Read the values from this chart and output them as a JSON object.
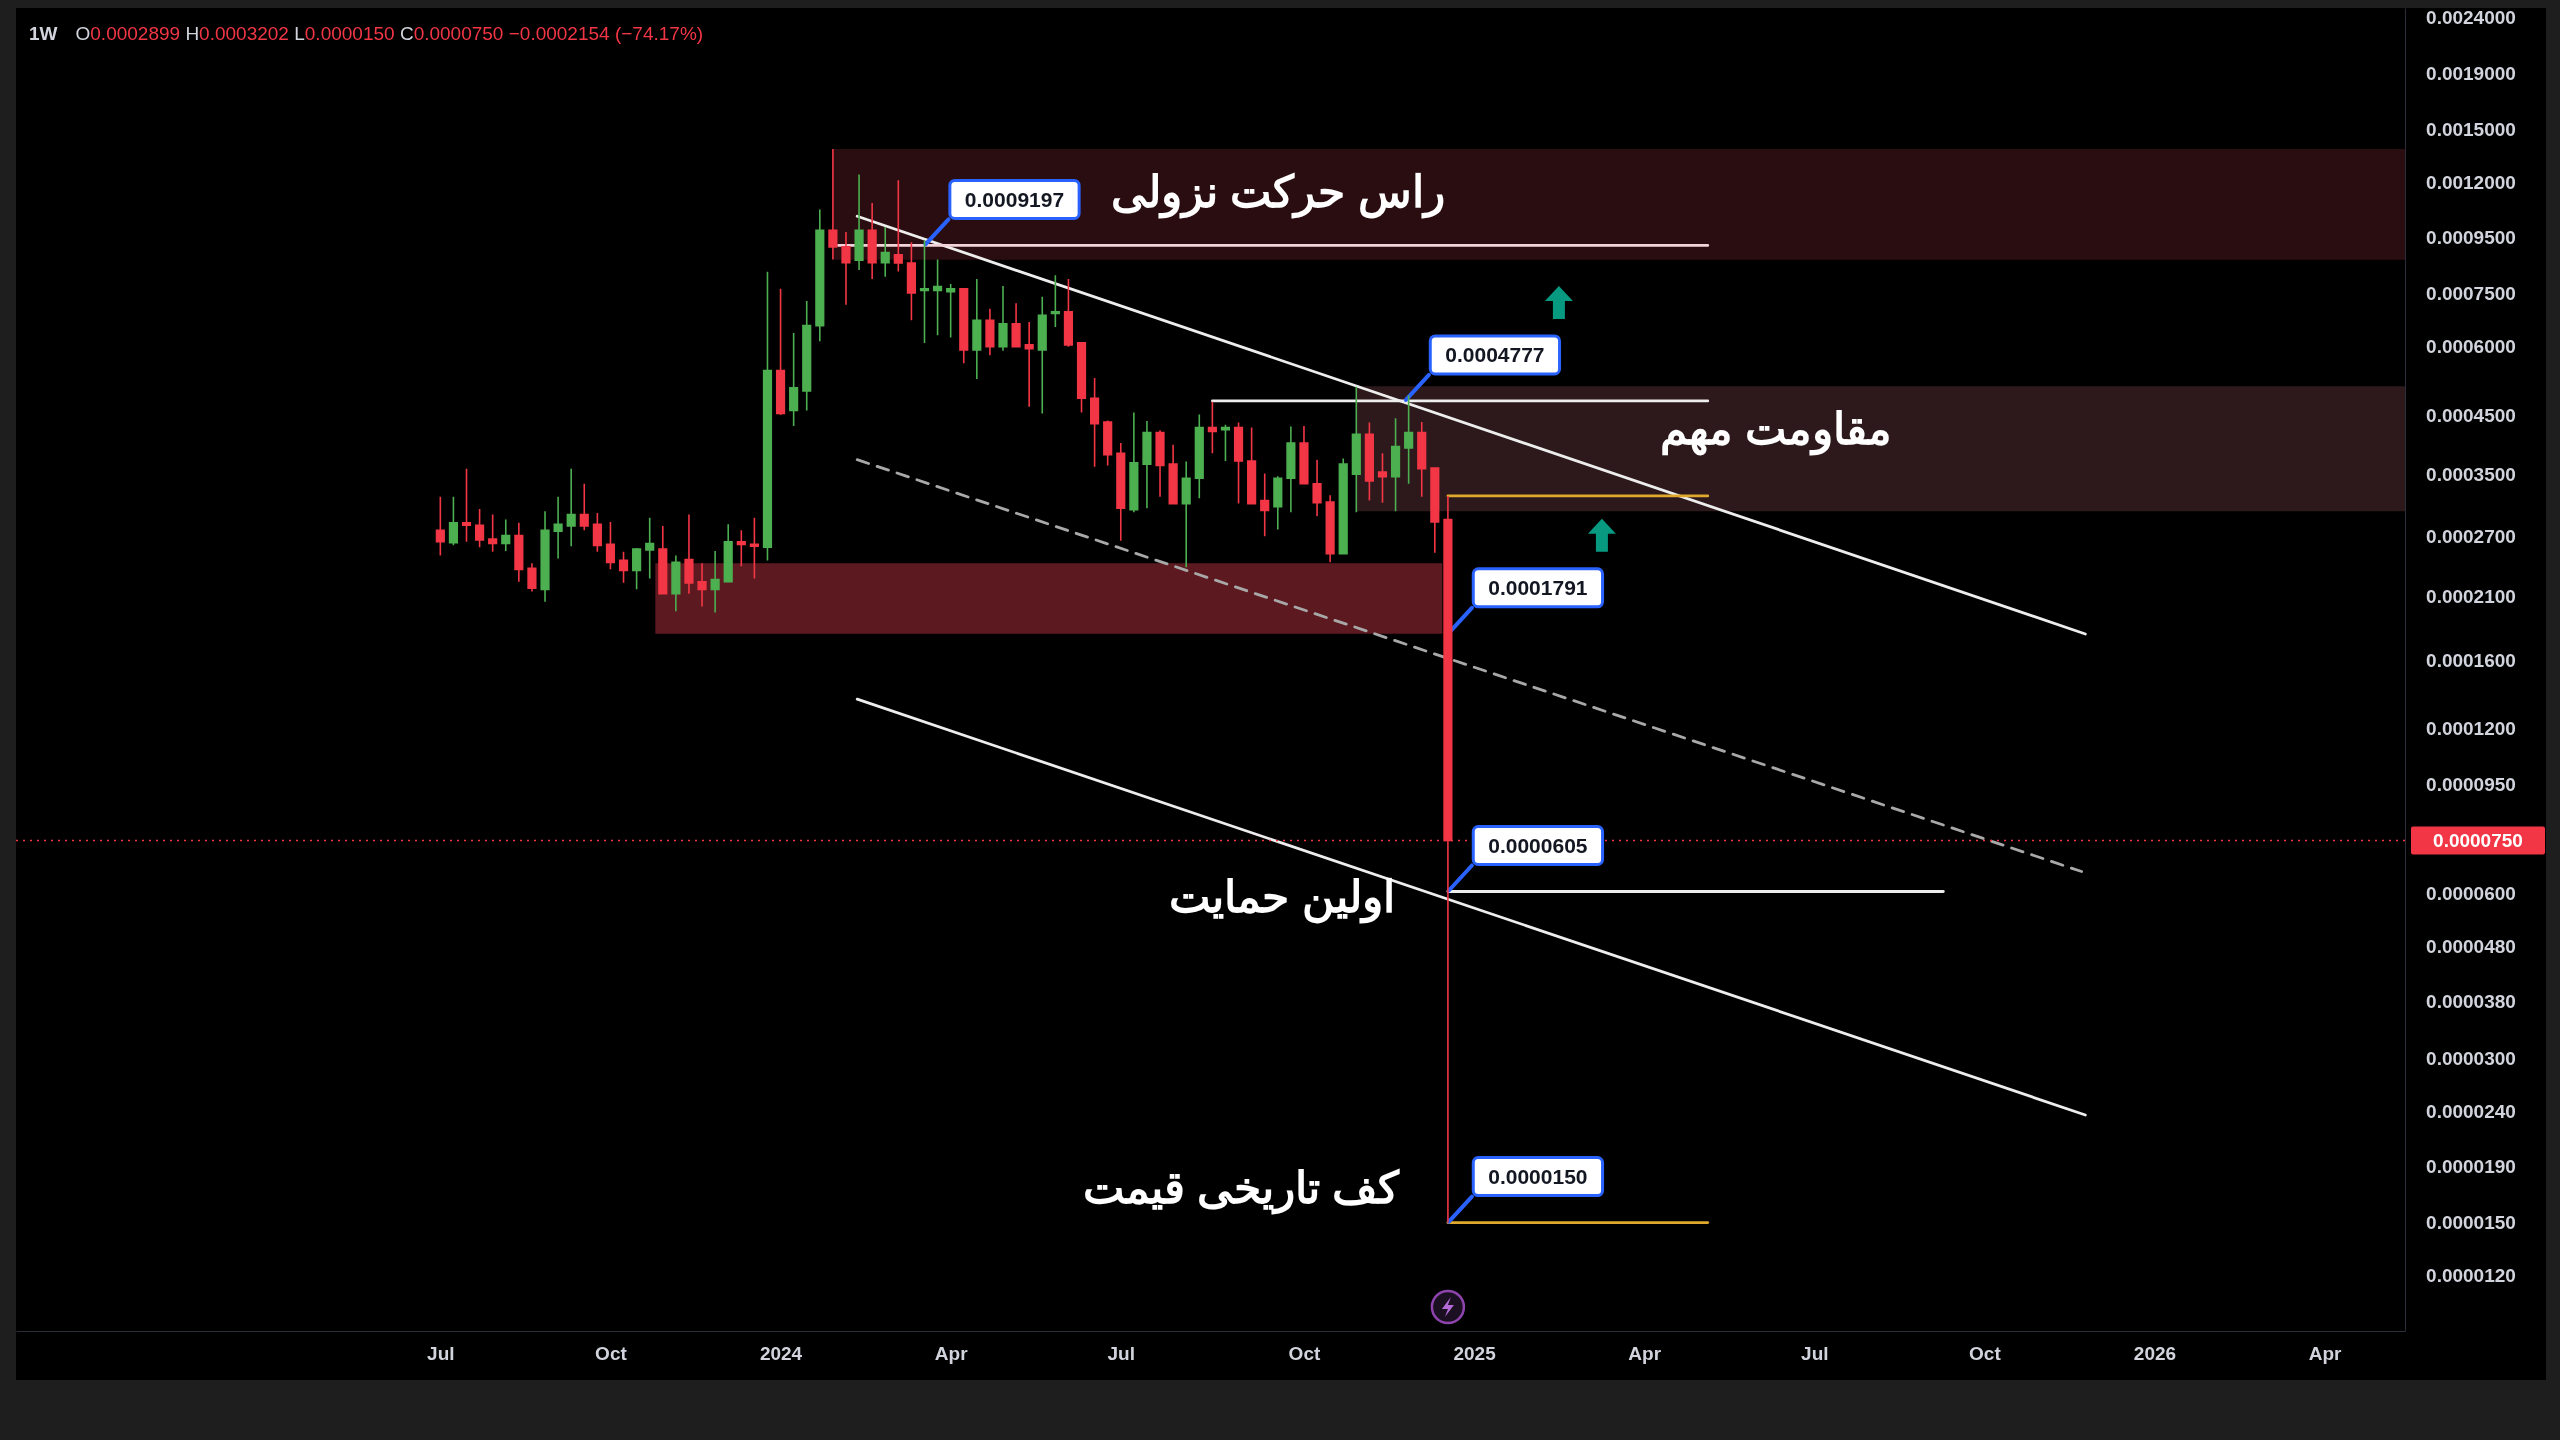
{
  "chart_data": {
    "type": "candlestick",
    "title": "1W",
    "subtitle": "O0.0002899 H0.0003202 L0.0000150 C0.0000750 −0.0002154 (−74.17%)",
    "log": "y",
    "x": [
      "2023-07-03",
      "2023-07-10",
      "2023-07-17",
      "2023-07-24",
      "2023-07-31",
      "2023-08-07",
      "2023-08-14",
      "2023-08-21",
      "2023-08-28",
      "2023-09-04",
      "2023-09-11",
      "2023-09-18",
      "2023-09-25",
      "2023-10-02",
      "2023-10-09",
      "2023-10-16",
      "2023-10-23",
      "2023-10-30",
      "2023-11-06",
      "2023-11-13",
      "2023-11-20",
      "2023-11-27",
      "2023-12-04",
      "2023-12-11",
      "2023-12-18",
      "2023-12-25",
      "2024-01-01",
      "2024-01-08",
      "2024-01-15",
      "2024-01-22",
      "2024-01-29",
      "2024-02-05",
      "2024-02-12",
      "2024-02-19",
      "2024-02-26",
      "2024-03-04",
      "2024-03-11",
      "2024-03-18",
      "2024-03-25",
      "2024-04-01",
      "2024-04-08",
      "2024-04-15",
      "2024-04-22",
      "2024-04-29",
      "2024-05-06",
      "2024-05-13",
      "2024-05-20",
      "2024-05-27",
      "2024-06-03",
      "2024-06-10",
      "2024-06-17",
      "2024-06-24",
      "2024-07-01",
      "2024-07-08",
      "2024-07-15",
      "2024-07-22",
      "2024-07-29",
      "2024-08-05",
      "2024-08-12",
      "2024-08-19",
      "2024-08-26",
      "2024-09-02",
      "2024-09-09",
      "2024-09-16",
      "2024-09-23",
      "2024-09-30",
      "2024-10-07",
      "2024-10-14",
      "2024-10-21",
      "2024-10-28",
      "2024-11-04",
      "2024-11-11",
      "2024-11-18",
      "2024-11-25",
      "2024-12-02",
      "2024-12-09",
      "2024-12-16",
      "2024-12-23"
    ],
    "ohlc": [
      [
        0.000277,
        0.000319,
        0.000249,
        0.000264
      ],
      [
        0.000263,
        0.000319,
        0.00026,
        0.000286
      ],
      [
        0.000286,
        0.000359,
        0.000264,
        0.000283
      ],
      [
        0.000283,
        0.000303,
        0.000258,
        0.000266
      ],
      [
        0.000267,
        0.000296,
        0.000253,
        0.000262
      ],
      [
        0.000262,
        0.00029,
        0.000254,
        0.000271
      ],
      [
        0.000271,
        0.000286,
        0.000223,
        0.000235
      ],
      [
        0.000236,
        0.000241,
        0.000214,
        0.000217
      ],
      [
        0.000216,
        0.0003,
        0.000205,
        0.000277
      ],
      [
        0.000276,
        0.000319,
        0.000246,
        0.000284
      ],
      [
        0.000282,
        0.000359,
        0.000259,
        0.000296
      ],
      [
        0.000296,
        0.000337,
        0.000277,
        0.000282
      ],
      [
        0.000284,
        0.000298,
        0.000253,
        0.00026
      ],
      [
        0.000261,
        0.000287,
        0.000235,
        0.000242
      ],
      [
        0.000244,
        0.000253,
        0.000222,
        0.000234
      ],
      [
        0.000234,
        0.000257,
        0.000216,
        0.000256
      ],
      [
        0.000255,
        0.000292,
        0.000226,
        0.000262
      ],
      [
        0.000256,
        0.000282,
        0.000212,
        0.000212
      ],
      [
        0.000212,
        0.000249,
        0.000197,
        0.000242
      ],
      [
        0.000245,
        0.000296,
        0.000212,
        0.000222
      ],
      [
        0.000223,
        0.000241,
        0.000201,
        0.000216
      ],
      [
        0.000216,
        0.000254,
        0.000196,
        0.000225
      ],
      [
        0.000223,
        0.000284,
        0.000223,
        0.000264
      ],
      [
        0.000264,
        0.000277,
        0.000238,
        0.000261
      ],
      [
        0.000261,
        0.000292,
        0.000226,
        0.000259
      ],
      [
        0.000258,
        0.000823,
        0.000244,
        0.000543
      ],
      [
        0.000543,
        0.000766,
        0.00045,
        0.000453
      ],
      [
        0.000459,
        0.000636,
        0.00043,
        0.000505
      ],
      [
        0.000498,
        0.000728,
        0.000459,
        0.000656
      ],
      [
        0.000656,
        0.00107,
        0.000614,
        0.00098
      ],
      [
        0.00098,
        0.00138,
        0.000867,
        0.000914
      ],
      [
        0.000914,
        0.000973,
        0.000716,
        0.000855
      ],
      [
        0.000864,
        0.00124,
        0.000829,
        0.00098
      ],
      [
        0.00098,
        0.0011,
        0.000798,
        0.000855
      ],
      [
        0.000855,
        0.000994,
        0.000806,
        0.000892
      ],
      [
        0.000884,
        0.00121,
        0.000824,
        0.000854
      ],
      [
        0.000854,
        0.000932,
        0.000671,
        0.000753
      ],
      [
        0.000761,
        0.00094,
        0.00061,
        0.000766
      ],
      [
        0.000761,
        0.000867,
        0.00063,
        0.000773
      ],
      [
        0.000757,
        0.000782,
        0.000624,
        0.000766
      ],
      [
        0.000766,
        0.000766,
        0.00056,
        0.000592
      ],
      [
        0.000592,
        0.000798,
        0.000524,
        0.000671
      ],
      [
        0.000671,
        0.000704,
        0.000579,
        0.0006
      ],
      [
        0.0006,
        0.000775,
        0.00059,
        0.000661
      ],
      [
        0.000661,
        0.000721,
        0.000598,
        0.0006
      ],
      [
        0.000605,
        0.000666,
        0.000466,
        0.000595
      ],
      [
        0.000592,
        0.000741,
        0.000453,
        0.000685
      ],
      [
        0.000691,
        0.000811,
        0.000652,
        0.000695
      ],
      [
        0.000695,
        0.000798,
        0.0006,
        0.000605
      ],
      [
        0.00061,
        0.00061,
        0.000455,
        0.000483
      ],
      [
        0.000483,
        0.000526,
        0.000362,
        0.000434
      ],
      [
        0.000437,
        0.00044,
        0.000364,
        0.000381
      ],
      [
        0.000383,
        0.0004,
        0.000265,
        0.000304
      ],
      [
        0.000302,
        0.000455,
        0.000299,
        0.000368
      ],
      [
        0.000366,
        0.000439,
        0.000304,
        0.000418
      ],
      [
        0.000418,
        0.000422,
        0.000319,
        0.000364
      ],
      [
        0.000366,
        0.000397,
        0.000309,
        0.00031
      ],
      [
        0.00031,
        0.00037,
        0.000237,
        0.000345
      ],
      [
        0.000345,
        0.000451,
        0.000317,
        0.000427
      ],
      [
        0.000427,
        0.000476,
        0.000383,
        0.00042
      ],
      [
        0.000423,
        0.000432,
        0.000371,
        0.000427
      ],
      [
        0.000427,
        0.000436,
        0.00031,
        0.000371
      ],
      [
        0.000371,
        0.000427,
        0.000309,
        0.00031
      ],
      [
        0.000314,
        0.000352,
        0.00027,
        0.000301
      ],
      [
        0.000306,
        0.000348,
        0.000278,
        0.000345
      ],
      [
        0.000345,
        0.000429,
        0.000299,
        0.0004
      ],
      [
        0.0004,
        0.00043,
        0.000336,
        0.000337
      ],
      [
        0.000337,
        0.000373,
        0.000294,
        0.000311
      ],
      [
        0.000312,
        0.000321,
        0.000242,
        0.000251
      ],
      [
        0.000251,
        0.000375,
        0.000251,
        0.000366
      ],
      [
        0.000351,
        0.000507,
        0.000299,
        0.000415
      ],
      [
        0.000415,
        0.000436,
        0.000314,
        0.000341
      ],
      [
        0.000354,
        0.000383,
        0.000311,
        0.000347
      ],
      [
        0.000347,
        0.000444,
        0.0003,
        0.000394
      ],
      [
        0.000392,
        0.000489,
        0.000337,
        0.000418
      ],
      [
        0.000418,
        0.000437,
        0.000319,
        0.000359
      ],
      [
        0.00036,
        0.00036,
        0.000252,
        0.000287
      ],
      [
        0.0002899,
        0.0003202,
        1.5e-05,
        7.5e-05
      ]
    ],
    "series": [
      {
        "type": "area",
        "x": [
          "2024-01-29",
          "2026-05-19"
        ],
        "values": [
          null,
          null
        ],
        "lower": [
          0.000866,
          0.000866
        ],
        "upper": [
          0.00138,
          0.00138
        ],
        "color": "#2a0d10"
      },
      {
        "type": "area",
        "x": [
          "2024-11-04",
          "2026-05-19"
        ],
        "values": [
          null,
          null
        ],
        "lower": [
          0.0003,
          0.0003
        ],
        "upper": [
          0.000508,
          0.000508
        ],
        "color": "#2d191b"
      },
      {
        "type": "area",
        "x": [
          "2023-10-26",
          "2024-12-20"
        ],
        "values": [
          null,
          null
        ],
        "lower": [
          0.0001791,
          0.0001791
        ],
        "upper": [
          0.000241,
          0.000241
        ],
        "color": "#5c1a20"
      },
      {
        "type": "line",
        "x": [
          "2024-02-11",
          "2025-11-29"
        ],
        "values": [
          0.00104,
          0.000179
        ],
        "color": "#ededed",
        "line_style": "solid"
      },
      {
        "type": "line",
        "x": [
          "2024-02-11",
          "2025-11-27"
        ],
        "values": [
          0.000373,
          6.58e-05
        ],
        "color": "#a8a8a8",
        "line_style": "dashed"
      },
      {
        "type": "line",
        "x": [
          "2024-02-11",
          "2025-11-29"
        ],
        "values": [
          0.000136,
          2.36e-05
        ],
        "color": "#ededed",
        "line_style": "solid"
      },
      {
        "type": "line",
        "x": [
          "2024-02-01",
          "2025-05-11"
        ],
        "values": [
          0.0009197,
          0.0009197
        ],
        "color": "#f3d3da",
        "line_style": "solid"
      },
      {
        "type": "line",
        "x": [
          "2024-08-19",
          "2025-05-11"
        ],
        "values": [
          0.0004777,
          0.0004777
        ],
        "color": "#ededed",
        "line_style": "solid"
      },
      {
        "type": "line",
        "x": [
          "2024-12-23",
          "2025-05-11"
        ],
        "values": [
          0.0003202,
          0.0003202
        ],
        "color": "#e0a92e",
        "line_style": "solid"
      },
      {
        "type": "line",
        "x": [
          "2024-12-23",
          "2025-09-14"
        ],
        "values": [
          6.05e-05,
          6.05e-05
        ],
        "color": "#ededed",
        "line_style": "solid"
      },
      {
        "type": "line",
        "x": [
          "2024-12-23",
          "2025-05-11"
        ],
        "values": [
          1.5e-05,
          1.5e-05
        ],
        "color": "#e0a92e",
        "line_style": "solid"
      }
    ],
    "ref_lines": [
      {
        "axis": "y",
        "value": 7.5e-05,
        "label": "0.0000750",
        "color": "#f23645",
        "line_style": "dotted"
      }
    ],
    "annotations": [
      "راس حرکت نزولی",
      "مقاومت مهم",
      "اولین حمایت",
      "کف تاریخی قیمت",
      {
        "text": "0.0009197",
        "x": "2024-03-18",
        "y": 0.0009197
      },
      {
        "text": "0.0004777",
        "x": "2024-11-30",
        "y": 0.0004777
      },
      {
        "text": "0.0001791",
        "x": "2024-12-23",
        "y": 0.0001791
      },
      {
        "text": "0.0000605",
        "x": "2024-12-23",
        "y": 6.05e-05
      },
      {
        "text": "0.0000150",
        "x": "2024-12-23",
        "y": 1.5e-05
      }
    ],
    "xlim": [
      "2022-11-18",
      "2026-05-19"
    ],
    "xticks": [
      {
        "value": "2023-07-03",
        "label": "Jul"
      },
      {
        "value": "2023-10-02",
        "label": "Oct"
      },
      {
        "value": "2024-01-01",
        "label": "2024"
      },
      {
        "value": "2024-04-01",
        "label": "Apr"
      },
      {
        "value": "2024-07-01",
        "label": "Jul"
      },
      {
        "value": "2024-10-07",
        "label": "Oct"
      },
      {
        "value": "2025-01-06",
        "label": "2025"
      },
      {
        "value": "2025-04-07",
        "label": "Apr"
      },
      {
        "value": "2025-07-07",
        "label": "Jul"
      },
      {
        "value": "2025-10-06",
        "label": "Oct"
      },
      {
        "value": "2026-01-05",
        "label": "2026"
      },
      {
        "value": "2026-04-06",
        "label": "Apr"
      }
    ],
    "ylim": [
      9.5e-06,
      0.0025
    ],
    "yticks": [
      {
        "value": 0.0024,
        "label": "0.0024000"
      },
      {
        "value": 0.0019,
        "label": "0.0019000"
      },
      {
        "value": 0.0015,
        "label": "0.0015000"
      },
      {
        "value": 0.0012,
        "label": "0.0012000"
      },
      {
        "value": 0.00095,
        "label": "0.0009500"
      },
      {
        "value": 0.00075,
        "label": "0.0007500"
      },
      {
        "value": 0.0006,
        "label": "0.0006000"
      },
      {
        "value": 0.00045,
        "label": "0.0004500"
      },
      {
        "value": 0.00035,
        "label": "0.0003500"
      },
      {
        "value": 0.00027,
        "label": "0.0002700"
      },
      {
        "value": 0.00021,
        "label": "0.0002100"
      },
      {
        "value": 0.00016,
        "label": "0.0001600"
      },
      {
        "value": 0.00012,
        "label": "0.0001200"
      },
      {
        "value": 9.5e-05,
        "label": "0.0000950"
      },
      {
        "value": 6e-05,
        "label": "0.0000600"
      },
      {
        "value": 4.8e-05,
        "label": "0.0000480"
      },
      {
        "value": 3.8e-05,
        "label": "0.0000380"
      },
      {
        "value": 3e-05,
        "label": "0.0000300"
      },
      {
        "value": 2.4e-05,
        "label": "0.0000240"
      },
      {
        "value": 1.9e-05,
        "label": "0.0000190"
      },
      {
        "value": 1.5e-05,
        "label": "0.0000150"
      },
      {
        "value": 1.2e-05,
        "label": "0.0000120"
      }
    ]
  }
}
